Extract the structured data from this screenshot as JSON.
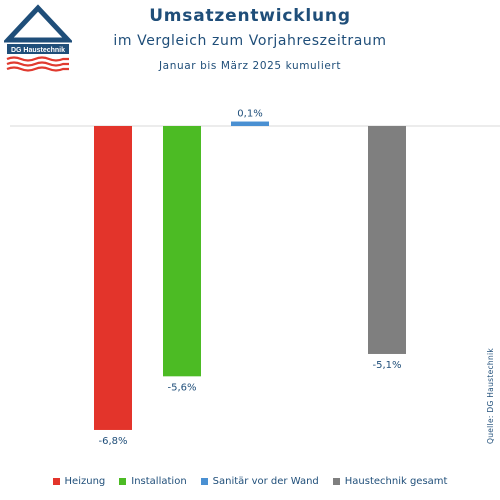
{
  "logo": {
    "text": "DG Haustechnik"
  },
  "header": {
    "title": "Umsatzentwicklung",
    "subtitle": "im Vergleich zum Vorjahreszeitraum",
    "period": "Januar bis März 2025 kumuliert"
  },
  "source": "Quelle: DG Haustechnik",
  "colors": {
    "text": "#1f4e79",
    "logo_blue": "#1f4e79",
    "logo_red": "#e03a2f"
  },
  "chart_data": {
    "type": "bar",
    "title": "Umsatzentwicklung",
    "categories": [
      "Heizung",
      "Installation",
      "Sanitär vor der Wand",
      "Haustechnik gesamt"
    ],
    "values": [
      -6.8,
      -5.6,
      0.1,
      -5.1
    ],
    "value_labels": [
      "-6,8%",
      "-5,6%",
      "0,1%",
      "-5,1%"
    ],
    "colors": [
      "#e3342b",
      "#4cbb24",
      "#4a90d2",
      "#7f7f7f"
    ],
    "unit": "%",
    "ylim": [
      -6.8,
      0.1
    ],
    "grid": false,
    "legend": "bottom"
  }
}
